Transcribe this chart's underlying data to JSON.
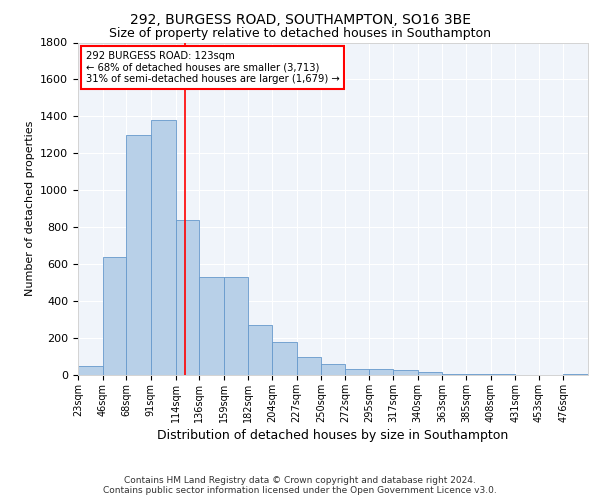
{
  "title1": "292, BURGESS ROAD, SOUTHAMPTON, SO16 3BE",
  "title2": "Size of property relative to detached houses in Southampton",
  "xlabel": "Distribution of detached houses by size in Southampton",
  "ylabel": "Number of detached properties",
  "footer1": "Contains HM Land Registry data © Crown copyright and database right 2024.",
  "footer2": "Contains public sector information licensed under the Open Government Licence v3.0.",
  "annotation_line1": "292 BURGESS ROAD: 123sqm",
  "annotation_line2": "← 68% of detached houses are smaller (3,713)",
  "annotation_line3": "31% of semi-detached houses are larger (1,679) →",
  "bar_color": "#b8d0e8",
  "bar_edge_color": "#6699cc",
  "red_line_x": 123,
  "ylim": [
    0,
    1800
  ],
  "yticks": [
    0,
    200,
    400,
    600,
    800,
    1000,
    1200,
    1400,
    1600,
    1800
  ],
  "bin_edges": [
    23,
    46,
    68,
    91,
    114,
    136,
    159,
    182,
    204,
    227,
    250,
    272,
    295,
    317,
    340,
    363,
    385,
    408,
    431,
    453,
    476,
    499
  ],
  "bar_heights": [
    50,
    640,
    1300,
    1380,
    840,
    530,
    530,
    270,
    180,
    100,
    60,
    30,
    30,
    25,
    15,
    8,
    5,
    3,
    2,
    1,
    5
  ],
  "tick_labels": [
    "23sqm",
    "46sqm",
    "68sqm",
    "91sqm",
    "114sqm",
    "136sqm",
    "159sqm",
    "182sqm",
    "204sqm",
    "227sqm",
    "250sqm",
    "272sqm",
    "295sqm",
    "317sqm",
    "340sqm",
    "363sqm",
    "385sqm",
    "408sqm",
    "431sqm",
    "453sqm",
    "476sqm"
  ],
  "title1_fontsize": 10,
  "title2_fontsize": 9,
  "ylabel_fontsize": 8,
  "xlabel_fontsize": 9,
  "tick_fontsize": 7,
  "footer_fontsize": 6.5,
  "background_color": "#f0f4fa"
}
